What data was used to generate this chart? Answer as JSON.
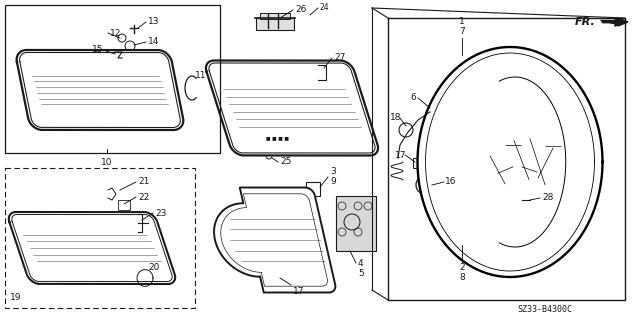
{
  "bg_color": "#ffffff",
  "line_color": "#1a1a1a",
  "diagram_code": "SZ33-B4300C",
  "label_fontsize": 6.5,
  "fig_w": 6.4,
  "fig_h": 3.19,
  "dpi": 100
}
